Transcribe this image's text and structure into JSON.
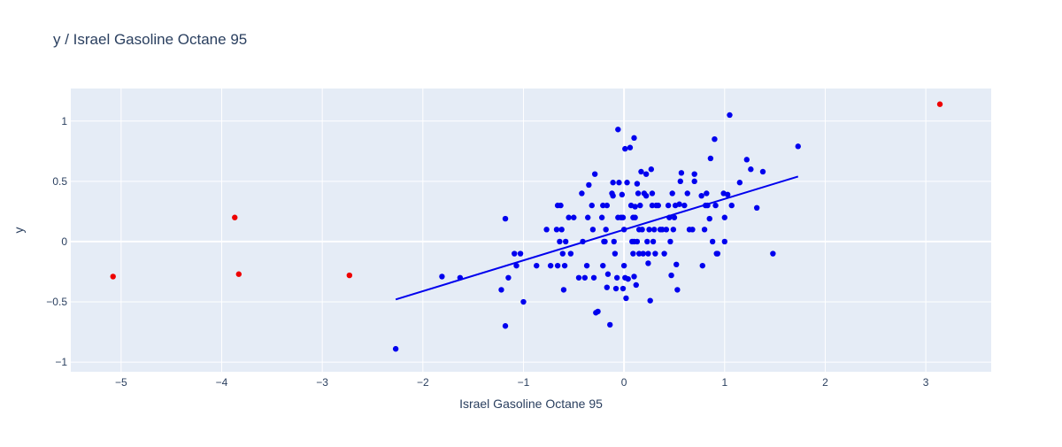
{
  "chart_data": {
    "type": "scatter",
    "title": "y / Israel Gasoline Octane 95",
    "xlabel": "Israel Gasoline Octane 95",
    "ylabel": "y",
    "xlim": [
      -5.5,
      3.65
    ],
    "ylim": [
      -1.08,
      1.27
    ],
    "x_ticks": [
      -5,
      -4,
      -3,
      -2,
      -1,
      0,
      1,
      2,
      3
    ],
    "y_ticks": [
      -1,
      -0.5,
      0,
      0.5,
      1
    ],
    "grid": true,
    "colors": {
      "plot_bg": "#e5ecf6",
      "grid": "#ffffff",
      "main": "#0000ee",
      "outlier": "#ee0000",
      "text": "#2a3f5f"
    },
    "series": [
      {
        "color": "#0000ee",
        "points": [
          [
            -2.27,
            -0.89
          ],
          [
            -1.81,
            -0.29
          ],
          [
            -1.63,
            -0.3
          ],
          [
            -1.22,
            -0.4
          ],
          [
            -1.18,
            0.19
          ],
          [
            -1.18,
            -0.7
          ],
          [
            -1.15,
            -0.3
          ],
          [
            -1.09,
            -0.1
          ],
          [
            -1.07,
            -0.2
          ],
          [
            -1.03,
            -0.1
          ],
          [
            -1.0,
            -0.5
          ],
          [
            -0.87,
            -0.2
          ],
          [
            -0.77,
            0.1
          ],
          [
            -0.73,
            -0.2
          ],
          [
            -0.67,
            0.1
          ],
          [
            -0.66,
            0.3
          ],
          [
            -0.66,
            -0.2
          ],
          [
            -0.64,
            0.0
          ],
          [
            -0.63,
            0.3
          ],
          [
            -0.62,
            0.1
          ],
          [
            -0.61,
            -0.1
          ],
          [
            -0.6,
            -0.4
          ],
          [
            -0.59,
            -0.2
          ],
          [
            -0.58,
            0.0
          ],
          [
            -0.55,
            0.2
          ],
          [
            -0.53,
            -0.1
          ],
          [
            -0.5,
            0.2
          ],
          [
            -0.45,
            -0.3
          ],
          [
            -0.42,
            0.4
          ],
          [
            -0.41,
            0.0
          ],
          [
            -0.39,
            -0.3
          ],
          [
            -0.37,
            -0.2
          ],
          [
            -0.36,
            0.2
          ],
          [
            -0.35,
            0.47
          ],
          [
            -0.32,
            0.3
          ],
          [
            -0.31,
            0.1
          ],
          [
            -0.3,
            -0.3
          ],
          [
            -0.29,
            0.56
          ],
          [
            -0.28,
            -0.59
          ],
          [
            -0.26,
            -0.58
          ],
          [
            -0.22,
            0.2
          ],
          [
            -0.21,
            0.3
          ],
          [
            -0.21,
            -0.2
          ],
          [
            -0.2,
            0.0
          ],
          [
            -0.19,
            0.0
          ],
          [
            -0.18,
            0.1
          ],
          [
            -0.17,
            0.3
          ],
          [
            -0.17,
            -0.38
          ],
          [
            -0.16,
            -0.27
          ],
          [
            -0.14,
            -0.69
          ],
          [
            -0.12,
            0.4
          ],
          [
            -0.11,
            0.49
          ],
          [
            -0.11,
            0.38
          ],
          [
            -0.1,
            0.0
          ],
          [
            -0.09,
            -0.1
          ],
          [
            -0.08,
            -0.39
          ],
          [
            -0.07,
            -0.3
          ],
          [
            -0.06,
            0.93
          ],
          [
            -0.06,
            0.2
          ],
          [
            -0.05,
            0.49
          ],
          [
            -0.03,
            0.2
          ],
          [
            -0.02,
            0.39
          ],
          [
            -0.01,
            0.2
          ],
          [
            -0.01,
            -0.39
          ],
          [
            0.0,
            -0.2
          ],
          [
            0.0,
            0.1
          ],
          [
            0.01,
            -0.3
          ],
          [
            0.01,
            0.77
          ],
          [
            0.02,
            -0.47
          ],
          [
            0.03,
            0.49
          ],
          [
            0.04,
            -0.31
          ],
          [
            0.06,
            0.78
          ],
          [
            0.07,
            0.3
          ],
          [
            0.08,
            0.0
          ],
          [
            0.09,
            0.2
          ],
          [
            0.09,
            -0.1
          ],
          [
            0.1,
            0.86
          ],
          [
            0.1,
            0.0
          ],
          [
            0.1,
            -0.29
          ],
          [
            0.11,
            0.29
          ],
          [
            0.11,
            0.2
          ],
          [
            0.12,
            -0.36
          ],
          [
            0.13,
            0.48
          ],
          [
            0.13,
            0.0
          ],
          [
            0.14,
            0.4
          ],
          [
            0.15,
            0.1
          ],
          [
            0.15,
            -0.1
          ],
          [
            0.16,
            0.3
          ],
          [
            0.17,
            0.58
          ],
          [
            0.18,
            0.1
          ],
          [
            0.19,
            -0.1
          ],
          [
            0.2,
            0.4
          ],
          [
            0.22,
            0.56
          ],
          [
            0.22,
            0.38
          ],
          [
            0.23,
            0.0
          ],
          [
            0.24,
            -0.1
          ],
          [
            0.24,
            -0.18
          ],
          [
            0.25,
            0.1
          ],
          [
            0.26,
            -0.49
          ],
          [
            0.27,
            0.6
          ],
          [
            0.28,
            0.4
          ],
          [
            0.28,
            0.3
          ],
          [
            0.29,
            0.0
          ],
          [
            0.3,
            0.1
          ],
          [
            0.31,
            -0.1
          ],
          [
            0.32,
            0.3
          ],
          [
            0.34,
            0.3
          ],
          [
            0.36,
            0.1
          ],
          [
            0.38,
            0.1
          ],
          [
            0.4,
            -0.1
          ],
          [
            0.42,
            0.1
          ],
          [
            0.44,
            0.3
          ],
          [
            0.45,
            0.2
          ],
          [
            0.46,
            0.0
          ],
          [
            0.47,
            -0.28
          ],
          [
            0.48,
            0.4
          ],
          [
            0.49,
            0.1
          ],
          [
            0.5,
            0.2
          ],
          [
            0.51,
            0.3
          ],
          [
            0.52,
            -0.19
          ],
          [
            0.53,
            -0.4
          ],
          [
            0.55,
            0.31
          ],
          [
            0.56,
            0.5
          ],
          [
            0.57,
            0.57
          ],
          [
            0.6,
            0.3
          ],
          [
            0.63,
            0.4
          ],
          [
            0.65,
            0.1
          ],
          [
            0.68,
            0.1
          ],
          [
            0.7,
            0.5
          ],
          [
            0.7,
            0.56
          ],
          [
            0.77,
            0.38
          ],
          [
            0.78,
            -0.2
          ],
          [
            0.8,
            0.1
          ],
          [
            0.81,
            0.3
          ],
          [
            0.82,
            0.4
          ],
          [
            0.83,
            0.3
          ],
          [
            0.85,
            0.19
          ],
          [
            0.86,
            0.69
          ],
          [
            0.88,
            0.0
          ],
          [
            0.9,
            0.85
          ],
          [
            0.91,
            0.3
          ],
          [
            0.92,
            -0.1
          ],
          [
            0.93,
            -0.1
          ],
          [
            0.99,
            0.4
          ],
          [
            1.0,
            0.2
          ],
          [
            1.0,
            0.0
          ],
          [
            1.03,
            0.39
          ],
          [
            1.05,
            1.05
          ],
          [
            1.07,
            0.3
          ],
          [
            1.15,
            0.49
          ],
          [
            1.22,
            0.68
          ],
          [
            1.26,
            0.6
          ],
          [
            1.32,
            0.28
          ],
          [
            1.38,
            0.58
          ],
          [
            1.48,
            -0.1
          ],
          [
            1.73,
            0.79
          ]
        ]
      },
      {
        "color": "#ee0000",
        "points": [
          [
            -5.08,
            -0.29
          ],
          [
            -3.87,
            0.2
          ],
          [
            -3.83,
            -0.27
          ],
          [
            -2.73,
            -0.28
          ],
          [
            3.14,
            1.14
          ]
        ]
      }
    ],
    "trendline": {
      "color": "#0000ee",
      "points": [
        [
          -2.27,
          -0.48
        ],
        [
          1.73,
          0.54
        ]
      ]
    }
  }
}
